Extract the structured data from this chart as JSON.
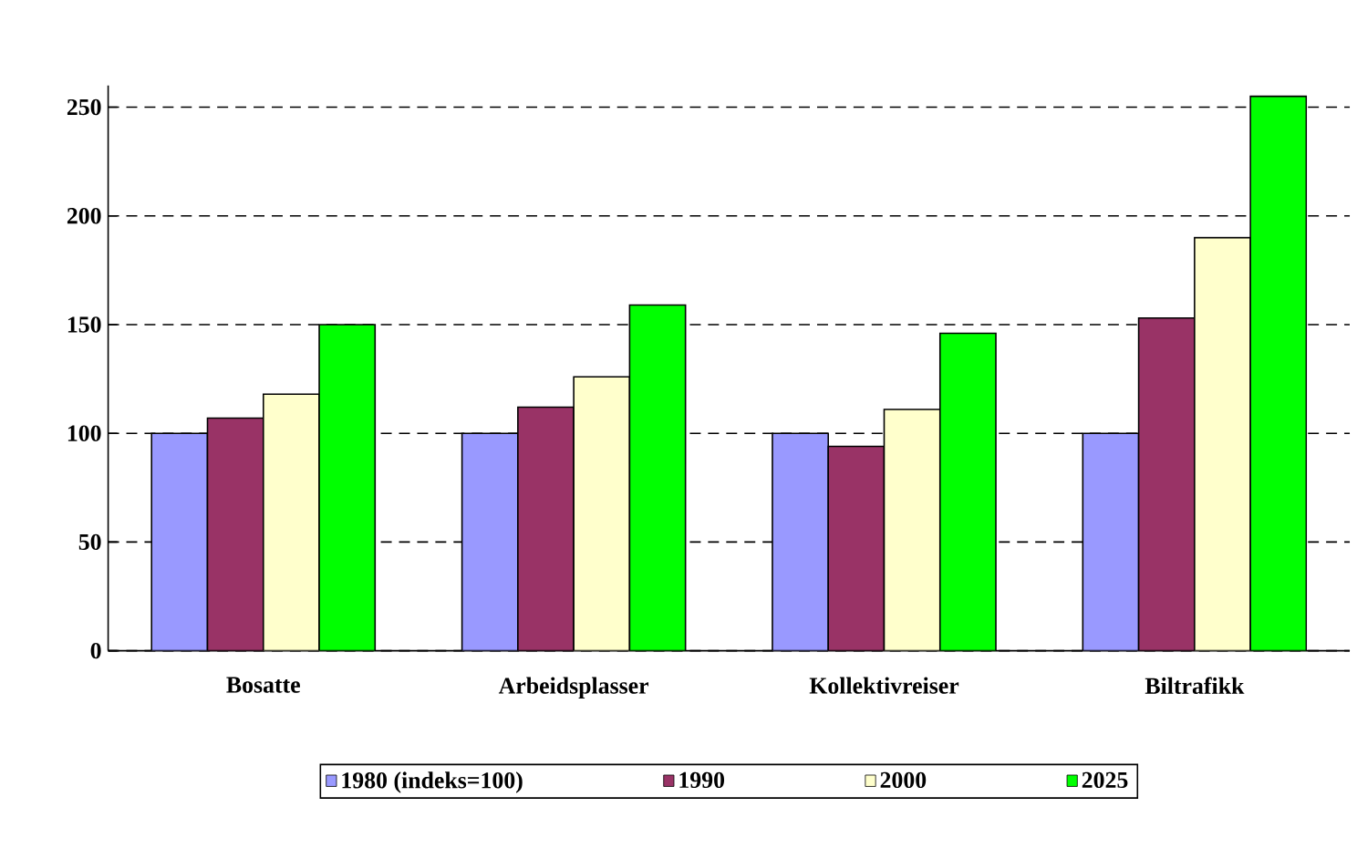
{
  "chart_data": {
    "type": "bar",
    "categories": [
      "Bosatte",
      "Arbeidsplasser",
      "Kollektivreiser",
      "Biltrafikk"
    ],
    "series": [
      {
        "name": "1980 (indeks=100)",
        "color": "#9999ff",
        "values": [
          100,
          100,
          100,
          100
        ]
      },
      {
        "name": "1990",
        "color": "#993366",
        "values": [
          107,
          112,
          94,
          153
        ]
      },
      {
        "name": "2000",
        "color": "#ffffcc",
        "values": [
          118,
          126,
          111,
          190
        ]
      },
      {
        "name": "2025",
        "color": "#00ff00",
        "values": [
          150,
          159,
          146,
          255
        ]
      }
    ],
    "ylim": [
      0,
      260
    ],
    "yticks": [
      0,
      50,
      100,
      150,
      200,
      250
    ],
    "grid": "y",
    "legend": "bottom"
  }
}
